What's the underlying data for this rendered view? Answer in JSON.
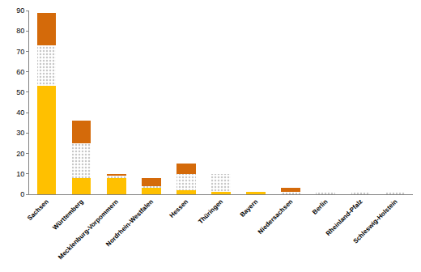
{
  "chart_data": {
    "type": "bar",
    "stacked": true,
    "grid": false,
    "categories": [
      "Sachsen",
      "Württemberg",
      "Mecklenburg-Vorpommern",
      "Nordrhein-Westfalen",
      "Hessen",
      "Thüringen",
      "Bayern",
      "Niedersachsen",
      "Berlin",
      "Rheinland-Pfalz",
      "Schleswig-Holstein"
    ],
    "series": [
      {
        "color": "#ffc000",
        "values": [
          53,
          8,
          8,
          3,
          2,
          1,
          1,
          0,
          0,
          0,
          0
        ]
      },
      {
        "color": "#a6a6a6",
        "values": [
          20,
          17,
          1,
          1,
          8,
          9,
          0,
          1,
          1,
          1,
          1
        ]
      },
      {
        "color": "#d46a0a",
        "values": [
          16,
          11,
          1,
          4,
          5,
          0,
          0,
          2,
          0,
          0,
          0
        ]
      }
    ],
    "ylim": [
      0,
      90
    ],
    "yticks": [
      0,
      10,
      20,
      30,
      40,
      50,
      60,
      70,
      80,
      90
    ]
  }
}
